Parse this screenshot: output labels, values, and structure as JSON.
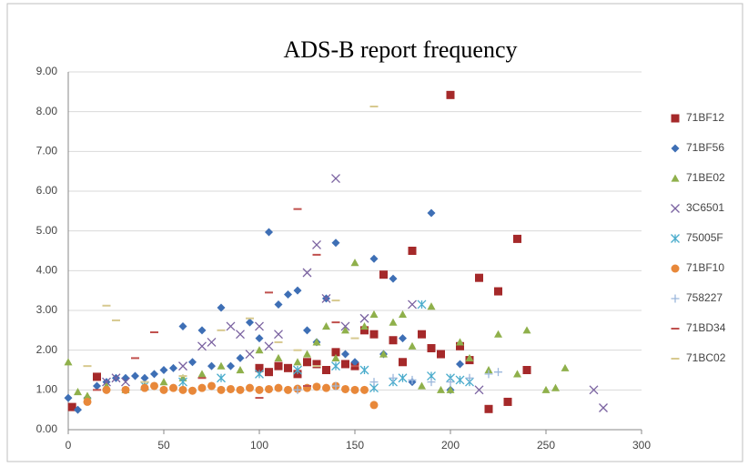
{
  "chart_data": {
    "type": "scatter",
    "title": "ADS-B report frequency",
    "xlim": [
      0,
      300
    ],
    "xticks": [
      0,
      50,
      100,
      150,
      200,
      250,
      300
    ],
    "ylim": [
      0,
      9
    ],
    "yticks": [
      {
        "value": 0,
        "label": "0.00"
      },
      {
        "value": 1,
        "label": "1.00"
      },
      {
        "value": 2,
        "label": "2.00"
      },
      {
        "value": 3,
        "label": "3.00"
      },
      {
        "value": 4,
        "label": "4.00"
      },
      {
        "value": 5,
        "label": "5.00"
      },
      {
        "value": 6,
        "label": "6.00"
      },
      {
        "value": 7,
        "label": "7.00"
      },
      {
        "value": 8,
        "label": "8.00"
      },
      {
        "value": 9,
        "label": "9.00"
      }
    ],
    "grid": true,
    "legend": "right",
    "series": [
      {
        "name": "71BF12",
        "color": "#a5292a",
        "marker": "square",
        "x": [
          2,
          15,
          100,
          105,
          110,
          115,
          120,
          125,
          130,
          135,
          140,
          145,
          150,
          155,
          160,
          165,
          170,
          175,
          180,
          185,
          190,
          195,
          200,
          205,
          210,
          215,
          220,
          225,
          230,
          235,
          240
        ],
        "values": [
          0.57,
          1.33,
          1.55,
          1.45,
          1.6,
          1.55,
          1.4,
          1.7,
          1.65,
          1.5,
          1.95,
          1.65,
          1.6,
          2.5,
          2.4,
          3.9,
          2.25,
          1.7,
          4.5,
          2.4,
          2.05,
          1.9,
          8.42,
          2.1,
          1.75,
          3.82,
          0.52,
          3.48,
          0.7,
          4.8,
          1.5
        ]
      },
      {
        "name": "71BF56",
        "color": "#3e6fb5",
        "marker": "diamond",
        "x": [
          0,
          5,
          10,
          15,
          20,
          25,
          30,
          35,
          40,
          45,
          50,
          55,
          60,
          65,
          70,
          75,
          80,
          85,
          90,
          95,
          100,
          105,
          110,
          115,
          120,
          125,
          130,
          135,
          140,
          145,
          150,
          160,
          165,
          170,
          175,
          180,
          190,
          200,
          205
        ],
        "values": [
          0.8,
          0.5,
          0.8,
          1.1,
          1.2,
          1.3,
          1.3,
          1.35,
          1.3,
          1.4,
          1.5,
          1.55,
          2.6,
          1.7,
          2.5,
          1.6,
          3.07,
          1.6,
          1.8,
          2.7,
          2.3,
          4.97,
          3.15,
          3.4,
          3.5,
          2.5,
          2.2,
          3.3,
          4.7,
          1.9,
          1.7,
          4.3,
          1.9,
          3.8,
          2.3,
          1.2,
          5.45,
          1.0,
          1.65
        ]
      },
      {
        "name": "71BE02",
        "color": "#8fb04b",
        "marker": "triangle",
        "x": [
          0,
          5,
          10,
          20,
          30,
          40,
          50,
          60,
          70,
          80,
          90,
          100,
          110,
          120,
          125,
          130,
          135,
          140,
          145,
          150,
          155,
          160,
          165,
          170,
          175,
          180,
          185,
          190,
          195,
          200,
          205,
          210,
          220,
          225,
          235,
          240,
          250,
          255,
          260
        ],
        "values": [
          1.7,
          0.95,
          0.85,
          1.1,
          1.0,
          1.1,
          1.2,
          1.3,
          1.4,
          1.6,
          1.5,
          2.0,
          1.8,
          1.7,
          1.9,
          2.2,
          2.6,
          1.8,
          2.5,
          4.2,
          2.6,
          2.9,
          1.9,
          2.7,
          2.9,
          2.1,
          1.1,
          3.1,
          1.0,
          1.0,
          2.2,
          1.8,
          1.5,
          2.4,
          1.4,
          2.5,
          1.0,
          1.05,
          1.55
        ]
      },
      {
        "name": "3C6501",
        "color": "#7a62a0",
        "marker": "x",
        "x": [
          20,
          25,
          30,
          60,
          70,
          75,
          85,
          90,
          95,
          100,
          105,
          110,
          125,
          130,
          135,
          140,
          145,
          155,
          180,
          215,
          275,
          280
        ],
        "values": [
          1.2,
          1.3,
          1.2,
          1.6,
          2.1,
          2.2,
          2.6,
          2.4,
          1.9,
          2.6,
          2.1,
          2.4,
          3.95,
          4.65,
          3.3,
          6.32,
          2.6,
          2.8,
          3.15,
          1.0,
          1.0,
          0.55
        ]
      },
      {
        "name": "75005F",
        "color": "#4aaccc",
        "marker": "star",
        "x": [
          40,
          60,
          80,
          100,
          120,
          140,
          155,
          160,
          170,
          175,
          185,
          190,
          200,
          205,
          210
        ],
        "values": [
          1.1,
          1.2,
          1.3,
          1.4,
          1.5,
          1.6,
          1.5,
          1.05,
          1.2,
          1.3,
          3.15,
          1.35,
          1.3,
          1.25,
          1.2
        ]
      },
      {
        "name": "71BF10",
        "color": "#e8883a",
        "marker": "circle",
        "x": [
          10,
          20,
          30,
          40,
          45,
          50,
          55,
          60,
          65,
          70,
          75,
          80,
          85,
          90,
          95,
          100,
          105,
          110,
          115,
          120,
          125,
          130,
          135,
          140,
          145,
          150,
          155,
          160
        ],
        "values": [
          0.7,
          1.0,
          1.0,
          1.05,
          1.1,
          1.0,
          1.05,
          1.0,
          0.98,
          1.05,
          1.1,
          1.0,
          1.02,
          1.0,
          1.05,
          1.0,
          1.02,
          1.05,
          1.0,
          1.03,
          1.05,
          1.08,
          1.05,
          1.1,
          1.02,
          1.0,
          1.0,
          0.62
        ]
      },
      {
        "name": "758227",
        "color": "#9bb7dc",
        "marker": "plus",
        "x": [
          120,
          140,
          160,
          170,
          180,
          190,
          200,
          210,
          220,
          225
        ],
        "values": [
          1.0,
          1.1,
          1.2,
          1.3,
          1.25,
          1.2,
          1.2,
          1.3,
          1.4,
          1.45
        ]
      },
      {
        "name": "71BD34",
        "color": "#c0504d",
        "marker": "dash",
        "x": [
          15,
          35,
          45,
          70,
          100,
          105,
          120,
          125,
          130,
          140,
          150
        ],
        "values": [
          1.0,
          1.8,
          2.45,
          1.3,
          0.8,
          3.45,
          5.55,
          1.1,
          4.4,
          2.7,
          1.6
        ]
      },
      {
        "name": "71BC02",
        "color": "#d7c98f",
        "marker": "dash",
        "x": [
          10,
          20,
          25,
          40,
          60,
          80,
          95,
          110,
          120,
          130,
          140,
          150,
          160
        ],
        "values": [
          1.6,
          3.12,
          2.75,
          1.2,
          1.35,
          2.5,
          2.8,
          2.2,
          2.0,
          1.6,
          3.25,
          2.3,
          8.13
        ]
      }
    ]
  }
}
